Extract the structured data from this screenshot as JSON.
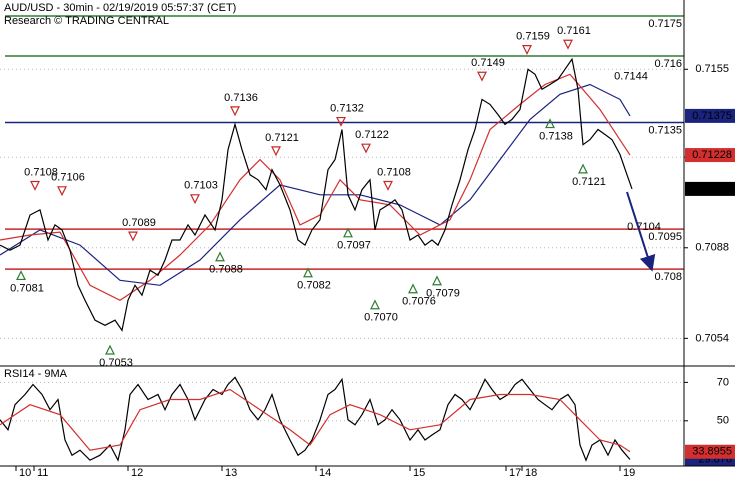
{
  "chart_data": [
    {
      "type": "line",
      "title": "AUD/USD - 30min - 02/19/2019 05:57:37 (CET)",
      "subtitle": "Research © TRADING CENTRAL",
      "xlim": [
        0,
        342
      ],
      "ylim": [
        0.7044,
        0.7181
      ],
      "yticks": [
        0.7155,
        0.7122,
        0.7088,
        0.7054
      ],
      "series": [
        {
          "color": "#1a237e",
          "box": true,
          "x": [
            0,
            20,
            40,
            60,
            80,
            100,
            120,
            140,
            160,
            180,
            200,
            220,
            235,
            250,
            265,
            280,
            295,
            310,
            315
          ],
          "values": [
            0.70853,
            0.70947,
            0.7089,
            0.70758,
            0.70739,
            0.70834,
            0.70985,
            0.71116,
            0.71079,
            0.71079,
            0.71041,
            0.70966,
            0.7106,
            0.71211,
            0.71362,
            0.71456,
            0.71493,
            0.71437,
            0.71375
          ]
        },
        {
          "color": "#d32f2f",
          "box": true,
          "x": [
            0,
            15,
            30,
            45,
            60,
            75,
            90,
            105,
            120,
            130,
            140,
            150,
            160,
            170,
            180,
            195,
            210,
            225,
            235,
            245,
            260,
            272.5,
            285,
            300,
            315
          ],
          "values": [
            0.70909,
            0.70928,
            0.70939,
            0.70739,
            0.70683,
            0.70758,
            0.70853,
            0.70966,
            0.71135,
            0.71211,
            0.71135,
            0.70966,
            0.71003,
            0.71135,
            0.7106,
            0.71041,
            0.70928,
            0.70985,
            0.71135,
            0.71324,
            0.71418,
            0.71493,
            0.71531,
            0.71399,
            0.71228
          ]
        },
        {
          "color": "#000000",
          "box": true,
          "x": [
            0,
            5,
            10,
            15,
            20,
            24,
            27.5,
            31,
            35,
            39,
            42.5,
            47.5,
            52.5,
            57.5,
            61,
            64,
            67.5,
            71,
            75,
            79,
            82.5,
            86,
            90,
            94,
            97.5,
            102.5,
            107.5,
            111,
            114,
            117.5,
            121,
            125,
            129,
            133,
            136,
            140,
            145,
            149,
            152.5,
            156,
            160,
            164,
            167.5,
            171,
            174,
            177.5,
            181,
            185,
            187.5,
            190,
            194,
            197.5,
            201,
            205,
            209,
            212.5,
            216,
            219,
            222.5,
            226,
            230,
            234,
            237.5,
            241,
            245,
            249,
            252.5,
            256,
            260,
            264,
            267.5,
            271,
            275,
            279,
            282.5,
            286,
            289,
            291.5,
            295,
            299,
            302.5,
            306,
            310,
            313.5,
            316
          ],
          "values": [
            0.7089,
            0.70871,
            0.7089,
            0.71003,
            0.71022,
            0.70909,
            0.70966,
            0.70947,
            0.70871,
            0.70739,
            0.70683,
            0.70608,
            0.70589,
            0.70608,
            0.7057,
            0.70683,
            0.70739,
            0.70702,
            0.70796,
            0.70777,
            0.70834,
            0.70909,
            0.70909,
            0.70966,
            0.70928,
            0.71003,
            0.70947,
            0.7106,
            0.71248,
            0.71343,
            0.71248,
            0.71154,
            0.71135,
            0.71098,
            0.71173,
            0.71116,
            0.71022,
            0.70909,
            0.7089,
            0.70947,
            0.70985,
            0.71173,
            0.71211,
            0.71324,
            0.71079,
            0.71022,
            0.71098,
            0.71135,
            0.70947,
            0.71022,
            0.71041,
            0.7106,
            0.71022,
            0.70909,
            0.70928,
            0.7089,
            0.70909,
            0.7089,
            0.70947,
            0.71041,
            0.71135,
            0.71248,
            0.71324,
            0.71437,
            0.71418,
            0.7138,
            0.71343,
            0.71362,
            0.71399,
            0.7155,
            0.71531,
            0.71475,
            0.71493,
            0.71512,
            0.7155,
            0.71588,
            0.71475,
            0.71267,
            0.71286,
            0.71324,
            0.71305,
            0.71286,
            0.7123,
            0.71154,
            0.71101
          ]
        }
      ],
      "levels": [
        {
          "value": 0.7175,
          "color": "#2e7d32"
        },
        {
          "value": 0.716,
          "color": "#2e7d32"
        },
        {
          "value": 0.7135,
          "color": "#1a237e"
        },
        {
          "value": 0.7095,
          "color": "#c62828"
        },
        {
          "value": 0.708,
          "color": "#c62828"
        }
      ],
      "marker_colors": {
        "above": "#c62828",
        "below": "#2e7d32"
      },
      "annotations": [
        {
          "x": 17.5,
          "value": 0.7108,
          "side": "above",
          "triangle": true
        },
        {
          "x": 31,
          "value": 0.7106,
          "side": "above",
          "triangle": true
        },
        {
          "x": 66.5,
          "value": 0.7089,
          "side": "above",
          "triangle": true
        },
        {
          "x": 97.5,
          "value": 0.7103,
          "side": "above",
          "triangle": true
        },
        {
          "x": 117.5,
          "value": 0.7136,
          "side": "above",
          "triangle": true
        },
        {
          "x": 138,
          "value": 0.7121,
          "side": "above",
          "triangle": true
        },
        {
          "x": 170.5,
          "value": 0.7132,
          "side": "above",
          "triangle": true
        },
        {
          "x": 183,
          "value": 0.7122,
          "side": "above",
          "triangle": true
        },
        {
          "x": 194,
          "value": 0.7108,
          "side": "above",
          "triangle": true
        },
        {
          "x": 241,
          "value": 0.7149,
          "side": "above",
          "triangle": true
        },
        {
          "x": 263.5,
          "value": 0.7159,
          "side": "above",
          "triangle": true
        },
        {
          "x": 284,
          "value": 0.7161,
          "side": "above",
          "triangle": true
        },
        {
          "x": 312.5,
          "value": 0.7144,
          "side": "above",
          "triangle": false
        },
        {
          "x": 10.5,
          "value": 0.7081,
          "side": "below",
          "triangle": true
        },
        {
          "x": 55,
          "value": 0.7053,
          "side": "below",
          "triangle": true
        },
        {
          "x": 110,
          "value": 0.7088,
          "side": "below",
          "triangle": true
        },
        {
          "x": 154,
          "value": 0.7082,
          "side": "below",
          "triangle": true
        },
        {
          "x": 174,
          "value": 0.7097,
          "side": "below",
          "triangle": true
        },
        {
          "x": 187.5,
          "value": 0.707,
          "label": "0.7070",
          "side": "below",
          "triangle": true
        },
        {
          "x": 206.5,
          "value": 0.7076,
          "side": "below",
          "triangle": true
        },
        {
          "x": 218.5,
          "value": 0.7079,
          "side": "below",
          "triangle": true
        },
        {
          "x": 275,
          "value": 0.7138,
          "side": "below",
          "triangle": true
        },
        {
          "x": 291.5,
          "value": 0.7121,
          "side": "below",
          "triangle": true
        },
        {
          "x": 319,
          "value": 0.7104,
          "side": "below",
          "triangle": false
        }
      ]
    },
    {
      "type": "line",
      "title": "RSI14 - 9MA",
      "xlim": [
        0,
        342
      ],
      "ylim": [
        27,
        78
      ],
      "yticks": [
        70,
        50
      ],
      "xticks": [
        {
          "value": 8,
          "label": "10"
        },
        {
          "value": 17,
          "label": "11"
        },
        {
          "value": 64,
          "label": "12"
        },
        {
          "value": 111,
          "label": "13"
        },
        {
          "value": 158,
          "label": "14"
        },
        {
          "value": 205,
          "label": "15"
        },
        {
          "value": 253,
          "label": "17"
        },
        {
          "value": 261,
          "label": "18"
        },
        {
          "value": 310,
          "label": "19"
        }
      ],
      "series": [
        {
          "color": "#000000",
          "box": true,
          "box_color": "#1a237e",
          "x": [
            0,
            4,
            7.5,
            12.5,
            16.5,
            21,
            25,
            29,
            32.5,
            36,
            40,
            45,
            50,
            55,
            59,
            62.5,
            65,
            69,
            74,
            79,
            82.5,
            86,
            90,
            94,
            97.5,
            102.5,
            106.5,
            111,
            114,
            117.5,
            121,
            125,
            129,
            132.5,
            136,
            140,
            145,
            149,
            152.5,
            156,
            160,
            164,
            167.5,
            171,
            174,
            177.5,
            181,
            185,
            189,
            192.5,
            196,
            200,
            205,
            209,
            212.5,
            216,
            220,
            224,
            227.5,
            231,
            235,
            239,
            242.5,
            246,
            250,
            254,
            257.5,
            261,
            265,
            269,
            272.5,
            276,
            280,
            284,
            287.5,
            290,
            293,
            296,
            300,
            304,
            307.5,
            311,
            315
          ],
          "values": [
            50.5,
            45.3,
            58.4,
            63.7,
            68.9,
            63.7,
            55.8,
            61.1,
            40.0,
            32.1,
            34.7,
            29.5,
            32.1,
            37.4,
            29.5,
            45.3,
            63.7,
            68.9,
            61.1,
            63.7,
            55.8,
            63.7,
            68.9,
            61.1,
            50.5,
            61.1,
            66.3,
            63.7,
            68.9,
            72.6,
            66.3,
            55.8,
            50.5,
            55.8,
            63.7,
            50.5,
            40.0,
            32.1,
            34.7,
            40.0,
            50.5,
            63.7,
            66.3,
            71.6,
            50.5,
            47.9,
            53.2,
            61.1,
            47.9,
            50.5,
            55.8,
            50.5,
            40.0,
            45.3,
            40.0,
            42.6,
            45.3,
            58.4,
            63.7,
            61.1,
            55.8,
            63.7,
            71.6,
            66.3,
            61.1,
            63.7,
            68.9,
            71.6,
            66.3,
            61.1,
            58.4,
            55.8,
            61.1,
            63.7,
            58.4,
            37.4,
            29.5,
            37.4,
            40.0,
            32.1,
            40.0,
            34.7,
            29.876
          ]
        },
        {
          "color": "#d32f2f",
          "box": true,
          "box_color": "#d32f2f",
          "x": [
            0,
            15,
            30,
            45,
            60,
            70,
            85,
            100,
            115,
            130,
            145,
            155,
            165,
            175,
            190,
            205,
            220,
            235,
            250,
            265,
            280,
            290,
            300,
            310,
            315
          ],
          "values": [
            47.9,
            58.4,
            53.2,
            34.7,
            37.4,
            55.8,
            61.1,
            61.1,
            66.3,
            55.8,
            45.3,
            37.4,
            53.2,
            58.4,
            53.2,
            45.3,
            47.9,
            61.1,
            63.7,
            63.7,
            61.1,
            50.5,
            40.0,
            37.4,
            33.8955
          ]
        }
      ]
    }
  ]
}
